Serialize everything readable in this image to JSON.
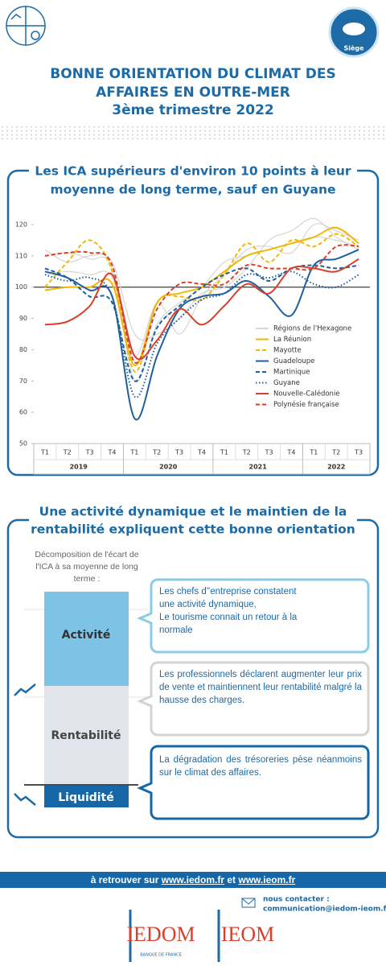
{
  "header": {
    "title_lines": [
      "BONNE ORIENTATION DU CLIMAT DES",
      "AFFAIRES EN OUTRE-MER",
      "3ème trimestre 2022"
    ],
    "badge": "Siège"
  },
  "section1": {
    "title_lines": [
      "Les ICA supérieurs d'environ 10 points à leur",
      "moyenne de long terme, sauf en Guyane"
    ]
  },
  "chart_data": {
    "type": "line",
    "categories": [
      "T1",
      "T2",
      "T3",
      "T4",
      "T1",
      "T2",
      "T3",
      "T4",
      "T1",
      "T2",
      "T3",
      "T4",
      "T1",
      "T2",
      "T3"
    ],
    "years": [
      "2019",
      "2020",
      "2021",
      "2022"
    ],
    "ylim": [
      50,
      120
    ],
    "yticks": [
      50,
      60,
      70,
      80,
      90,
      100,
      110,
      120
    ],
    "reference": 100,
    "series": [
      {
        "name": "Régions de l'Hexagone",
        "color": "#d6d6d6",
        "style": "solid",
        "lines": [
          [
            110,
            111,
            109,
            106,
            70,
            88,
            95,
            100,
            108,
            110,
            112,
            114,
            116,
            115,
            113
          ],
          [
            104,
            105,
            104,
            103,
            78,
            95,
            85,
            97,
            104,
            112,
            113,
            111,
            120,
            118,
            115
          ],
          [
            112,
            108,
            110,
            108,
            85,
            85,
            90,
            98,
            100,
            106,
            115,
            118,
            122,
            116,
            112
          ]
        ]
      },
      {
        "name": "La Réunion",
        "color": "#f2b705",
        "style": "solid",
        "values": [
          99,
          100,
          100,
          101,
          75,
          95,
          98,
          100,
          105,
          110,
          112,
          114,
          116,
          119,
          114
        ]
      },
      {
        "name": "Mayotte",
        "color": "#f2b705",
        "style": "dashed",
        "values": [
          100,
          108,
          115,
          105,
          73,
          95,
          97,
          96,
          104,
          114,
          108,
          115,
          113,
          117,
          113
        ]
      },
      {
        "name": "Guadeloupe",
        "color": "#1f5f9e",
        "style": "solid",
        "values": [
          105,
          103,
          99,
          97,
          58,
          78,
          93,
          97,
          98,
          102,
          97,
          91,
          107,
          109,
          112
        ]
      },
      {
        "name": "Martinique",
        "color": "#1f5f9e",
        "style": "dashed",
        "values": [
          106,
          103,
          97,
          95,
          70,
          87,
          94,
          100,
          104,
          106,
          102,
          106,
          107,
          106,
          107
        ]
      },
      {
        "name": "Guyane",
        "color": "#1f5f9e",
        "style": "dotted",
        "values": [
          104,
          102,
          103,
          97,
          65,
          82,
          90,
          96,
          98,
          104,
          103,
          105,
          101,
          100,
          104
        ]
      },
      {
        "name": "Nouvelle-Calédonie",
        "color": "#d9402b",
        "style": "solid",
        "values": [
          88,
          89,
          94,
          104,
          78,
          83,
          93,
          88,
          94,
          101,
          98,
          106,
          106,
          105,
          109
        ]
      },
      {
        "name": "Polynésie française",
        "color": "#d9402b",
        "style": "dashed",
        "values": [
          110,
          111,
          111,
          107,
          76,
          93,
          101,
          101,
          101,
          107,
          106,
          106,
          106,
          113,
          113
        ]
      }
    ]
  },
  "section2": {
    "title_lines": [
      "Une activité dynamique et le maintien de la",
      "rentabilité expliquent cette bonne orientation"
    ],
    "decomposition_lines": [
      "Décomposition de l'écart de",
      "l'ICA à sa moyenne de long",
      "terme :"
    ],
    "segments": [
      "Activité",
      "Rentabilité",
      "Liquidité"
    ],
    "callouts": [
      [
        "Les chefs d''entreprise constatent",
        "une activité dynamique,",
        "Le tourisme connait un retour à la",
        "normale"
      ],
      [
        "Les professionnels déclarent augmenter leur prix de vente et maintiennent leur rentabilité malgré la hausse des charges."
      ],
      [
        "La dégradation des trésoreries pèse néanmoins sur le climat des affaires."
      ]
    ]
  },
  "footer": {
    "prefix": "à retrouver sur",
    "link1": "www.iedom.fr",
    "conjunction": "et",
    "link2": "www.ieom.fr",
    "contact_label": "nous contacter :",
    "contact_email": "communication@iedom-ieom.fr",
    "logos": [
      "IEDOM",
      "BANQUE DE FRANCE",
      "IEOM"
    ]
  }
}
